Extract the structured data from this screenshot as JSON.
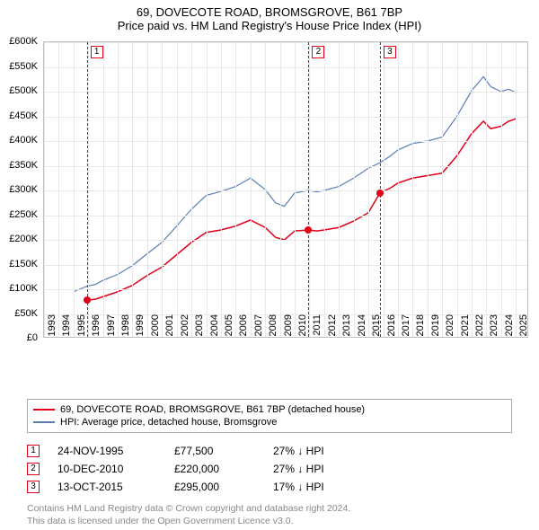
{
  "title": "69, DOVECOTE ROAD, BROMSGROVE, B61 7BP",
  "subtitle": "Price paid vs. HM Land Registry's House Price Index (HPI)",
  "chart": {
    "type": "line",
    "background_color": "#ffffff",
    "grid_color": "#e8e8e8",
    "border_color": "#c0c0c0",
    "x": {
      "min": 1993,
      "max": 2025.9,
      "ticks": [
        1993,
        1994,
        1995,
        1996,
        1997,
        1998,
        1999,
        2000,
        2001,
        2002,
        2003,
        2004,
        2005,
        2006,
        2007,
        2008,
        2009,
        2010,
        2011,
        2012,
        2013,
        2014,
        2015,
        2016,
        2017,
        2018,
        2019,
        2020,
        2021,
        2022,
        2023,
        2024,
        2025
      ]
    },
    "y": {
      "min": 0,
      "max": 600000,
      "tick_step": 50000,
      "tick_labels": [
        "£0",
        "£50K",
        "£100K",
        "£150K",
        "£200K",
        "£250K",
        "£300K",
        "£350K",
        "£400K",
        "£450K",
        "£500K",
        "£550K",
        "£600K"
      ]
    },
    "series": [
      {
        "name": "69, DOVECOTE ROAD, BROMSGROVE, B61 7BP (detached house)",
        "color": "#e2001a",
        "line_width": 1.5,
        "points": [
          [
            1995.9,
            77500
          ],
          [
            1996.5,
            80000
          ],
          [
            1997,
            85000
          ],
          [
            1998,
            95000
          ],
          [
            1999,
            108000
          ],
          [
            2000,
            128000
          ],
          [
            2001,
            145000
          ],
          [
            2002,
            170000
          ],
          [
            2003,
            195000
          ],
          [
            2004,
            215000
          ],
          [
            2005,
            220000
          ],
          [
            2006,
            228000
          ],
          [
            2007,
            240000
          ],
          [
            2008,
            225000
          ],
          [
            2008.7,
            205000
          ],
          [
            2009.3,
            200000
          ],
          [
            2010,
            218000
          ],
          [
            2010.94,
            220000
          ],
          [
            2011.5,
            218000
          ],
          [
            2012,
            220000
          ],
          [
            2013,
            225000
          ],
          [
            2014,
            238000
          ],
          [
            2015,
            255000
          ],
          [
            2015.78,
            295000
          ],
          [
            2016.5,
            305000
          ],
          [
            2017,
            315000
          ],
          [
            2018,
            325000
          ],
          [
            2019,
            330000
          ],
          [
            2020,
            335000
          ],
          [
            2021,
            370000
          ],
          [
            2022,
            415000
          ],
          [
            2022.8,
            440000
          ],
          [
            2023.3,
            425000
          ],
          [
            2024,
            430000
          ],
          [
            2024.5,
            440000
          ],
          [
            2025,
            445000
          ]
        ]
      },
      {
        "name": "HPI: Average price, detached house, Bromsgrove",
        "color": "#5b7fb5",
        "line_width": 1.2,
        "points": [
          [
            1995,
            95000
          ],
          [
            1995.9,
            106000
          ],
          [
            1996.5,
            110000
          ],
          [
            1997,
            118000
          ],
          [
            1998,
            130000
          ],
          [
            1999,
            148000
          ],
          [
            2000,
            172000
          ],
          [
            2001,
            195000
          ],
          [
            2002,
            228000
          ],
          [
            2003,
            262000
          ],
          [
            2004,
            290000
          ],
          [
            2005,
            298000
          ],
          [
            2006,
            308000
          ],
          [
            2007,
            325000
          ],
          [
            2008,
            302000
          ],
          [
            2008.7,
            275000
          ],
          [
            2009.3,
            268000
          ],
          [
            2010,
            295000
          ],
          [
            2010.94,
            300000
          ],
          [
            2011.5,
            297000
          ],
          [
            2012,
            300000
          ],
          [
            2013,
            308000
          ],
          [
            2014,
            325000
          ],
          [
            2015,
            345000
          ],
          [
            2015.78,
            356000
          ],
          [
            2016.5,
            370000
          ],
          [
            2017,
            382000
          ],
          [
            2018,
            395000
          ],
          [
            2019,
            400000
          ],
          [
            2020,
            408000
          ],
          [
            2021,
            450000
          ],
          [
            2022,
            502000
          ],
          [
            2022.8,
            530000
          ],
          [
            2023.3,
            510000
          ],
          [
            2024,
            500000
          ],
          [
            2024.5,
            505000
          ],
          [
            2025,
            498000
          ]
        ]
      }
    ],
    "markers": [
      {
        "num": "1",
        "x": 1995.9,
        "color": "#e2001a"
      },
      {
        "num": "2",
        "x": 2010.94,
        "color": "#e2001a"
      },
      {
        "num": "3",
        "x": 2015.78,
        "color": "#e2001a"
      }
    ],
    "sale_points": [
      {
        "x": 1995.9,
        "y": 77500,
        "color": "#e2001a"
      },
      {
        "x": 2010.94,
        "y": 220000,
        "color": "#e2001a"
      },
      {
        "x": 2015.78,
        "y": 295000,
        "color": "#e2001a"
      }
    ]
  },
  "legend": {
    "rows": [
      {
        "color": "#e2001a",
        "label": "69, DOVECOTE ROAD, BROMSGROVE, B61 7BP (detached house)"
      },
      {
        "color": "#5b7fb5",
        "label": "HPI: Average price, detached house, Bromsgrove"
      }
    ]
  },
  "sales": [
    {
      "num": "1",
      "color": "#e2001a",
      "date": "24-NOV-1995",
      "price": "£77,500",
      "delta": "27% ↓ HPI"
    },
    {
      "num": "2",
      "color": "#e2001a",
      "date": "10-DEC-2010",
      "price": "£220,000",
      "delta": "27% ↓ HPI"
    },
    {
      "num": "3",
      "color": "#e2001a",
      "date": "13-OCT-2015",
      "price": "£295,000",
      "delta": "17% ↓ HPI"
    }
  ],
  "attribution": {
    "line1": "Contains HM Land Registry data © Crown copyright and database right 2024.",
    "line2": "This data is licensed under the Open Government Licence v3.0."
  }
}
